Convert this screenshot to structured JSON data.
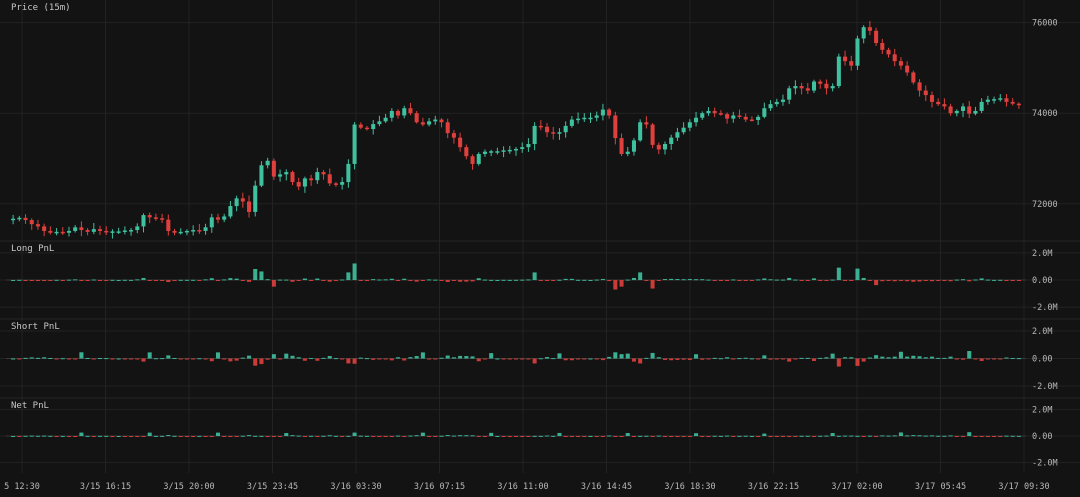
{
  "colors": {
    "background": "#131313",
    "grid": "#222222",
    "up": "#3fc1a0",
    "down": "#e0403d",
    "text": "#b8b8b8",
    "zero": "#2c2c2c"
  },
  "chart_data": {
    "type": "candlestick",
    "panels": [
      {
        "title": "Price (15m)",
        "ylim": [
          71200,
          76500
        ],
        "yticks": [
          {
            "value": 72000,
            "label": "72000"
          },
          {
            "value": 74000,
            "label": "74000"
          },
          {
            "value": 76000,
            "label": "76000"
          }
        ]
      },
      {
        "title": "Long PnL",
        "ylim": [
          -2.8,
          2.8
        ],
        "yticks": [
          {
            "value": 2,
            "label": "2.0M"
          },
          {
            "value": 0,
            "label": "0.00"
          },
          {
            "value": -2,
            "label": "-2.0M"
          }
        ]
      },
      {
        "title": "Short PnL",
        "ylim": [
          -2.8,
          2.8
        ],
        "yticks": [
          {
            "value": 2,
            "label": "2.0M"
          },
          {
            "value": 0,
            "label": "0.00"
          },
          {
            "value": -2,
            "label": "-2.0M"
          }
        ]
      },
      {
        "title": "Net PnL",
        "ylim": [
          -2.8,
          2.8
        ],
        "yticks": [
          {
            "value": 2,
            "label": "2.0M"
          },
          {
            "value": 0,
            "label": "0.00"
          },
          {
            "value": -2,
            "label": "-2.0M"
          }
        ]
      }
    ],
    "xaxis_labels": [
      "5 12:30",
      "3/15 16:15",
      "3/15 20:00",
      "3/15 23:45",
      "3/16 03:30",
      "3/16 07:15",
      "3/16 11:00",
      "3/16 14:45",
      "3/16 18:30",
      "3/16 22:15",
      "3/17 02:00",
      "3/17 05:45",
      "3/17 09:30"
    ],
    "price_close": [
      71670,
      71690,
      71640,
      71550,
      71500,
      71400,
      71360,
      71380,
      71360,
      71400,
      71480,
      71420,
      71380,
      71440,
      71400,
      71370,
      71390,
      71390,
      71410,
      71420,
      71500,
      71750,
      71700,
      71680,
      71650,
      71400,
      71360,
      71380,
      71400,
      71420,
      71400,
      71480,
      71700,
      71650,
      71720,
      71950,
      72120,
      72050,
      71820,
      72400,
      72850,
      72950,
      72600,
      72650,
      72700,
      72480,
      72380,
      72560,
      72520,
      72700,
      72650,
      72450,
      72420,
      72480,
      72880,
      73750,
      73680,
      73650,
      73760,
      73820,
      73900,
      74050,
      73950,
      74110,
      74000,
      73800,
      73750,
      73820,
      73860,
      73800,
      73560,
      73460,
      73250,
      73050,
      72880,
      73100,
      73150,
      73160,
      73160,
      73180,
      73190,
      73210,
      73250,
      73320,
      73720,
      73700,
      73580,
      73550,
      73580,
      73720,
      73860,
      73880,
      73900,
      73900,
      73950,
      74080,
      73950,
      73450,
      73100,
      73150,
      73400,
      73800,
      73750,
      73300,
      73200,
      73320,
      73460,
      73580,
      73680,
      73800,
      73900,
      74000,
      74050,
      74000,
      73980,
      73880,
      73950,
      73920,
      73860,
      73850,
      73920,
      74110,
      74200,
      74250,
      74300,
      74550,
      74600,
      74550,
      74500,
      74700,
      74650,
      74550,
      74600,
      75250,
      75150,
      75050,
      75650,
      75900,
      75820,
      75550,
      75400,
      75300,
      75150,
      75050,
      74900,
      74680,
      74500,
      74400,
      74250,
      74200,
      74150,
      74000,
      74050,
      74150,
      73990,
      74050,
      74250,
      74300,
      74310,
      74330,
      74250,
      74210,
      74180
    ]
  }
}
